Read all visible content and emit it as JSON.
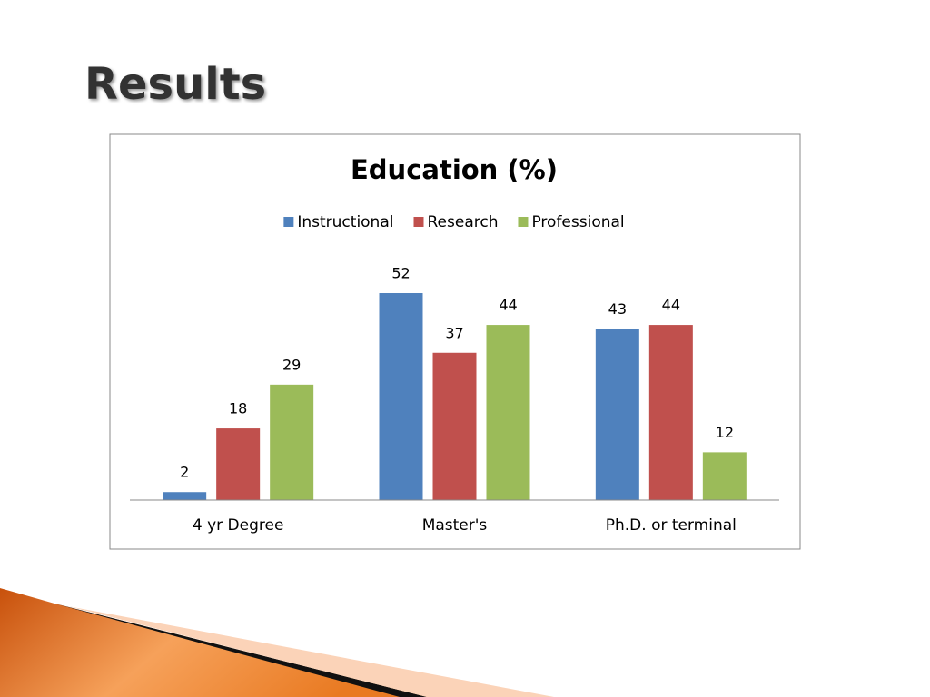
{
  "slide_title": "Results",
  "chart_data": {
    "type": "bar",
    "title": "Education (%)",
    "categories": [
      "4 yr Degree",
      "Master's",
      "Ph.D. or terminal"
    ],
    "series": [
      {
        "name": "Instructional",
        "color": "#4f81bd",
        "values": [
          2,
          52,
          43
        ]
      },
      {
        "name": "Research",
        "color": "#c0504d",
        "values": [
          18,
          37,
          44
        ]
      },
      {
        "name": "Professional",
        "color": "#9bbb59",
        "values": [
          29,
          44,
          12
        ]
      }
    ],
    "legend": "top"
  }
}
